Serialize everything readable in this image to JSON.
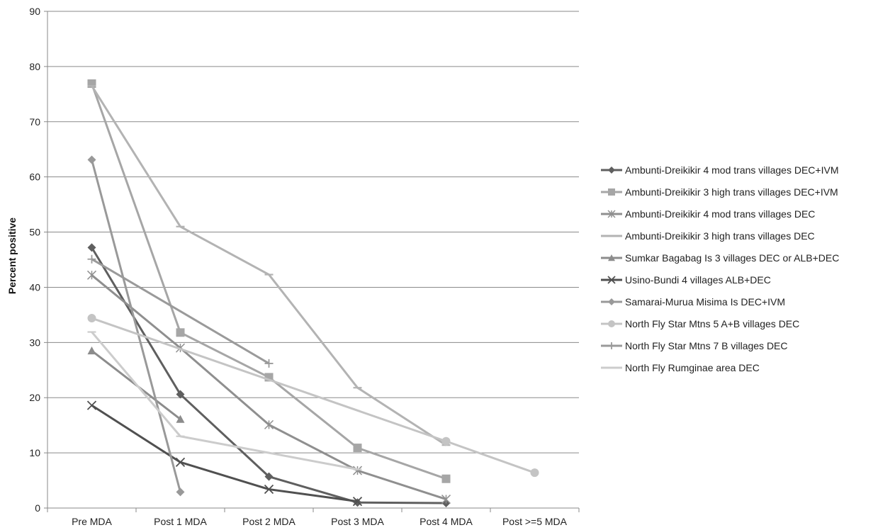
{
  "chart_data": {
    "type": "line",
    "title": "",
    "xlabel": "",
    "ylabel": "Percent positive",
    "categories": [
      "Pre MDA",
      "Post 1 MDA",
      "Post 2 MDA",
      "Post 3 MDA",
      "Post 4 MDA",
      "Post >=5 MDA"
    ],
    "ylim": [
      0,
      90
    ],
    "yticks": [
      0,
      10,
      20,
      30,
      40,
      50,
      60,
      70,
      80,
      90
    ],
    "grid": "horizontal",
    "legend_position": "right",
    "series": [
      {
        "name": "Ambunti-Dreikikir 4 mod trans villages DEC+IVM",
        "marker": "diamond",
        "color": "#5f5f5f",
        "values": [
          47.2,
          20.6,
          5.7,
          1.0,
          0.9,
          null
        ]
      },
      {
        "name": "Ambunti-Dreikikir 3 high trans villages DEC+IVM",
        "marker": "square",
        "color": "#a6a6a6",
        "values": [
          76.9,
          31.8,
          23.7,
          10.9,
          5.3,
          null
        ]
      },
      {
        "name": "Ambunti-Dreikikir 4 mod trans villages DEC",
        "marker": "asterisk",
        "color": "#8f8f8f",
        "values": [
          42.2,
          29.0,
          15.1,
          6.8,
          1.6,
          null
        ]
      },
      {
        "name": "Ambunti-Dreikikir 3 high trans villages DEC",
        "marker": "dash",
        "color": "#b3b3b3",
        "values": [
          76.5,
          51.0,
          42.3,
          21.8,
          11.4,
          null
        ]
      },
      {
        "name": "Sumkar Bagabag Is 3 villages DEC or ALB+DEC",
        "marker": "triangle",
        "color": "#8c8c8c",
        "values": [
          28.5,
          16.1,
          null,
          null,
          null,
          null
        ]
      },
      {
        "name": "Usino-Bundi 4 villages ALB+DEC",
        "marker": "x",
        "color": "#505050",
        "values": [
          18.6,
          8.3,
          3.4,
          1.2,
          null,
          null
        ]
      },
      {
        "name": "Samarai-Murua Misima Is DEC+IVM",
        "marker": "diamond",
        "color": "#999999",
        "values": [
          63.1,
          2.9,
          null,
          null,
          null,
          null
        ]
      },
      {
        "name": "North Fly Star Mtns 5 A+B villages DEC",
        "marker": "circle",
        "color": "#c4c4c4",
        "values": [
          34.4,
          null,
          null,
          null,
          12.1,
          6.4
        ]
      },
      {
        "name": "North Fly Star Mtns 7 B villages DEC",
        "marker": "plus",
        "color": "#9a9a9a",
        "values": [
          45.1,
          null,
          26.2,
          null,
          null,
          null
        ]
      },
      {
        "name": "North Fly Rumginae area DEC",
        "marker": "dash",
        "color": "#cccccc",
        "values": [
          31.9,
          13.0,
          null,
          7.0,
          null,
          null
        ]
      }
    ]
  }
}
